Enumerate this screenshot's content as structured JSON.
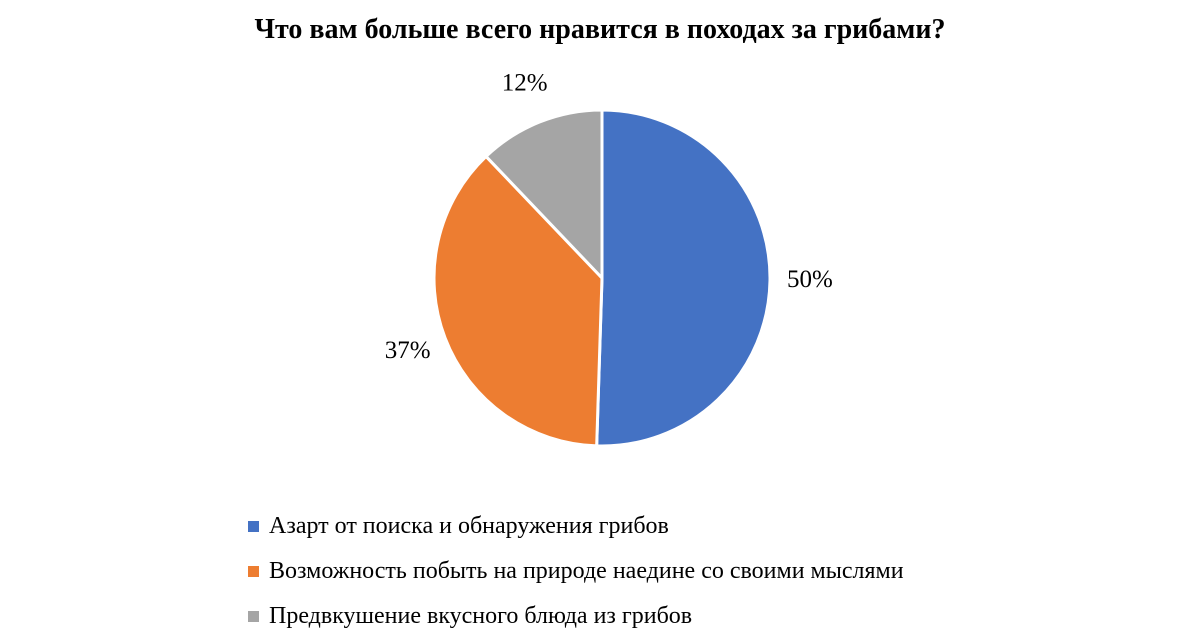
{
  "chart_data": {
    "type": "pie",
    "title": "Что вам больше всего нравится в походах за грибами?",
    "categories": [
      "Азарт от поиска и обнаружения грибов",
      "Возможность побыть на природе наедине со своими мыслями",
      "Предвкушение вкусного блюда из грибов"
    ],
    "values": [
      50,
      37,
      12
    ],
    "data_labels": [
      "50%",
      "37%",
      "12%"
    ],
    "colors": [
      "#4472C4",
      "#ED7D31",
      "#A5A5A5"
    ],
    "legend_position": "bottom"
  }
}
